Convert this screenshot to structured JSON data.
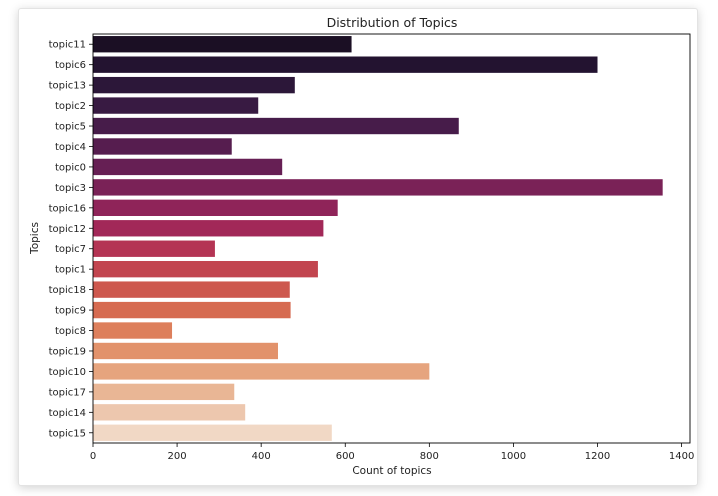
{
  "chart_data": {
    "type": "bar",
    "orientation": "horizontal",
    "title": "Distribution of Topics",
    "xlabel": "Count of topics",
    "ylabel": "Topics",
    "xlim": [
      0,
      1420
    ],
    "xticks": [
      0,
      200,
      400,
      600,
      800,
      1000,
      1200,
      1400
    ],
    "grid": false,
    "categories": [
      "topic11",
      "topic6",
      "topic13",
      "topic2",
      "topic5",
      "topic4",
      "topic0",
      "topic3",
      "topic16",
      "topic12",
      "topic7",
      "topic1",
      "topic18",
      "topic9",
      "topic8",
      "topic19",
      "topic10",
      "topic17",
      "topic14",
      "topic15"
    ],
    "values": [
      615,
      1200,
      480,
      393,
      870,
      330,
      450,
      1355,
      582,
      548,
      290,
      535,
      468,
      470,
      188,
      440,
      800,
      336,
      362,
      568
    ],
    "colors": [
      "#1b0f24",
      "#231330",
      "#2c1739",
      "#381a42",
      "#471c4a",
      "#561d4f",
      "#661f54",
      "#7a2257",
      "#8f2459",
      "#a22858",
      "#b43454",
      "#c2454f",
      "#cd584e",
      "#d66b51",
      "#dd7f5c",
      "#e2926b",
      "#e6a47e",
      "#e9b695",
      "#edc7ae",
      "#f1d8c5"
    ]
  }
}
